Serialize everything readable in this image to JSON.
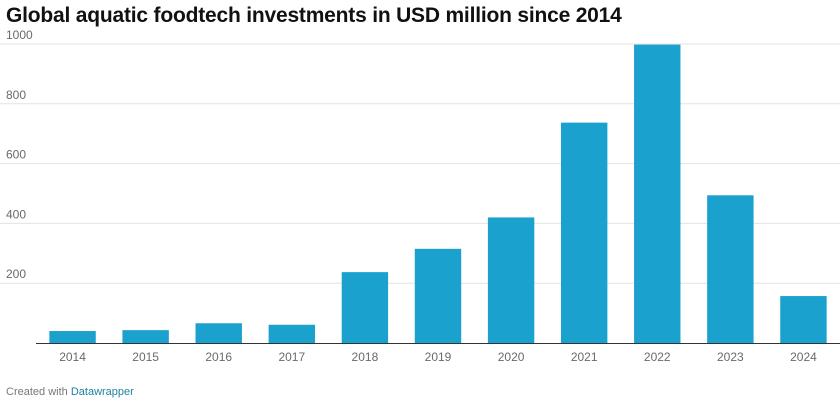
{
  "title": "Global aquatic foodtech investments in USD million since 2014",
  "footer": {
    "prefix": "Created with",
    "brand": "Datawrapper"
  },
  "colors": {
    "bar": "#1aa1cd",
    "grid": "#e3e3e3",
    "baseline": "#333333",
    "tick_label": "#6a6a6a",
    "brand_link": "#1d81a2"
  },
  "chart_data": {
    "type": "bar",
    "title": "Global aquatic foodtech investments in USD million since 2014",
    "xlabel": "",
    "ylabel": "",
    "categories": [
      "2014",
      "2015",
      "2016",
      "2017",
      "2018",
      "2019",
      "2020",
      "2021",
      "2022",
      "2023",
      "2024"
    ],
    "values": [
      40,
      43,
      66,
      61,
      237,
      315,
      420,
      737,
      998,
      494,
      157
    ],
    "ylim": [
      0,
      1000
    ],
    "yticks": [
      200,
      400,
      600,
      800,
      1000
    ],
    "grid": true,
    "legend": "none"
  }
}
